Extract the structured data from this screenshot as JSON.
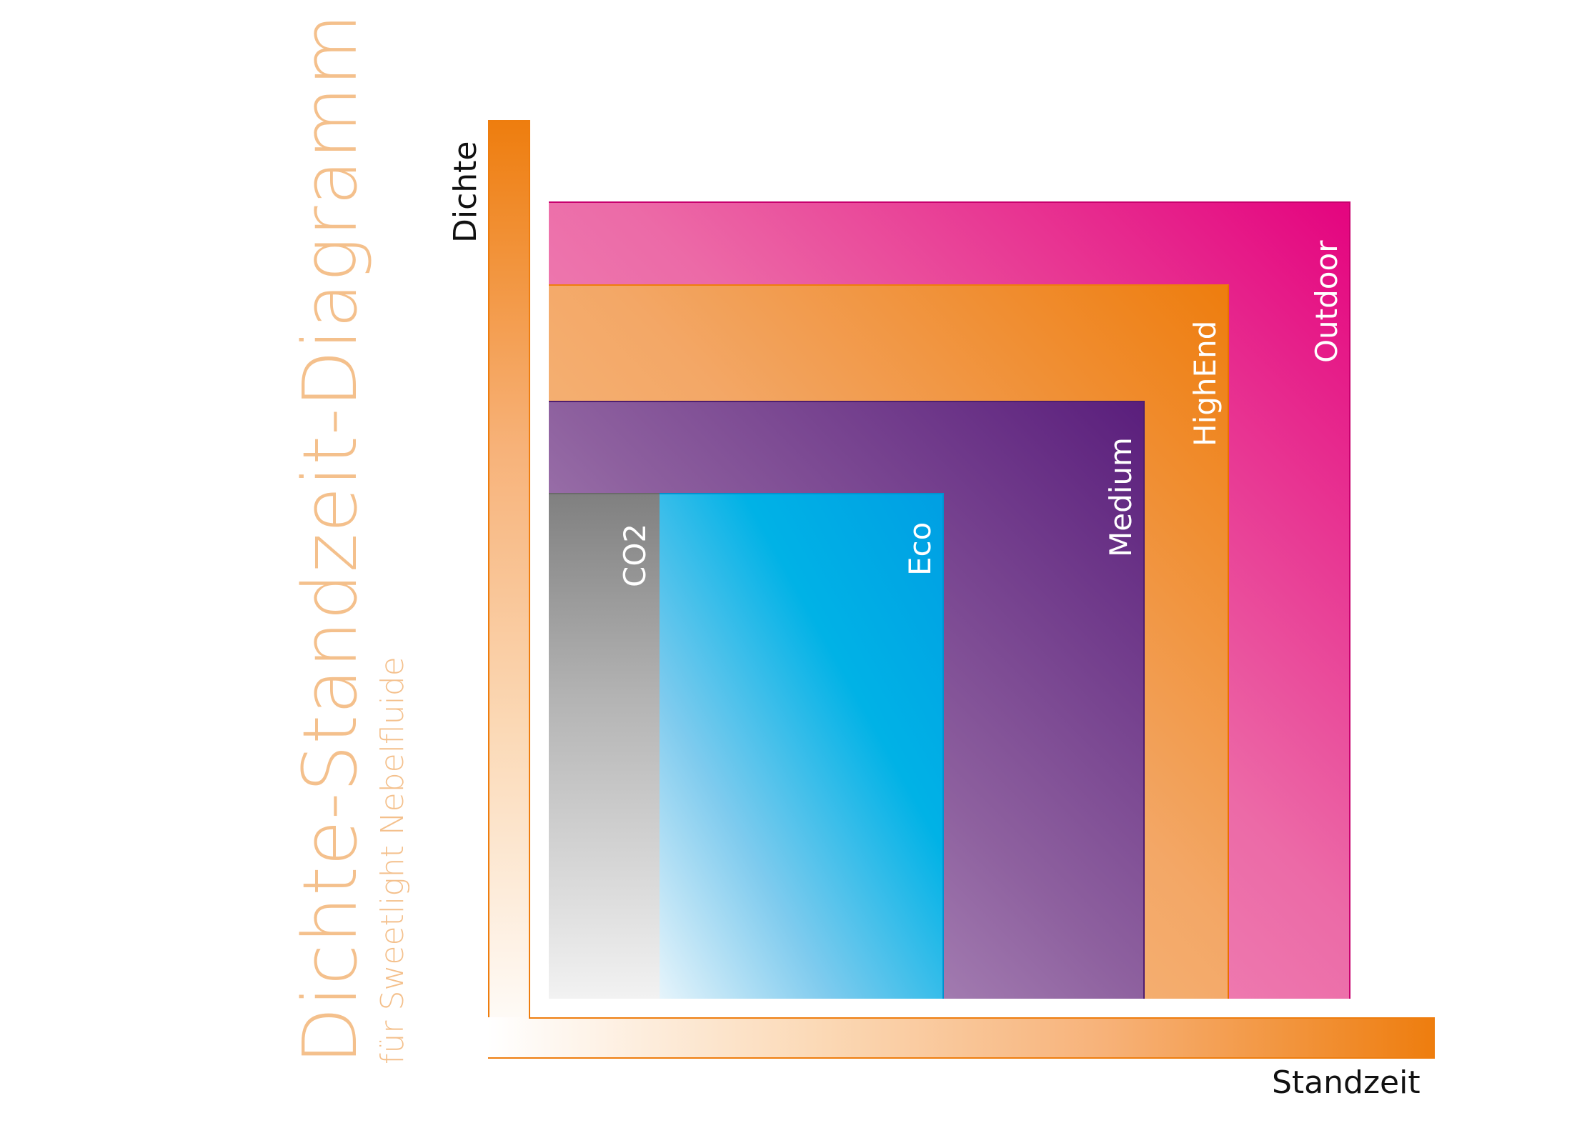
{
  "title": "Dichte-Standzeit-Diagramm",
  "subtitle": "für Sweetlight Nebelfluide",
  "axes": {
    "y_label": "Dichte",
    "x_label": "Standzeit"
  },
  "regions": [
    {
      "label": "Outdoor",
      "color": "#e4047f"
    },
    {
      "label": "HighEnd",
      "color": "#ee7d0e"
    },
    {
      "label": "Medium",
      "color": "#5a1e7c"
    },
    {
      "label": "Eco",
      "color": "#00b2e6"
    },
    {
      "label": "CO2",
      "color": "#808080"
    }
  ],
  "colors": {
    "title": "#f4c08c",
    "axis": "#ee7d0e"
  }
}
